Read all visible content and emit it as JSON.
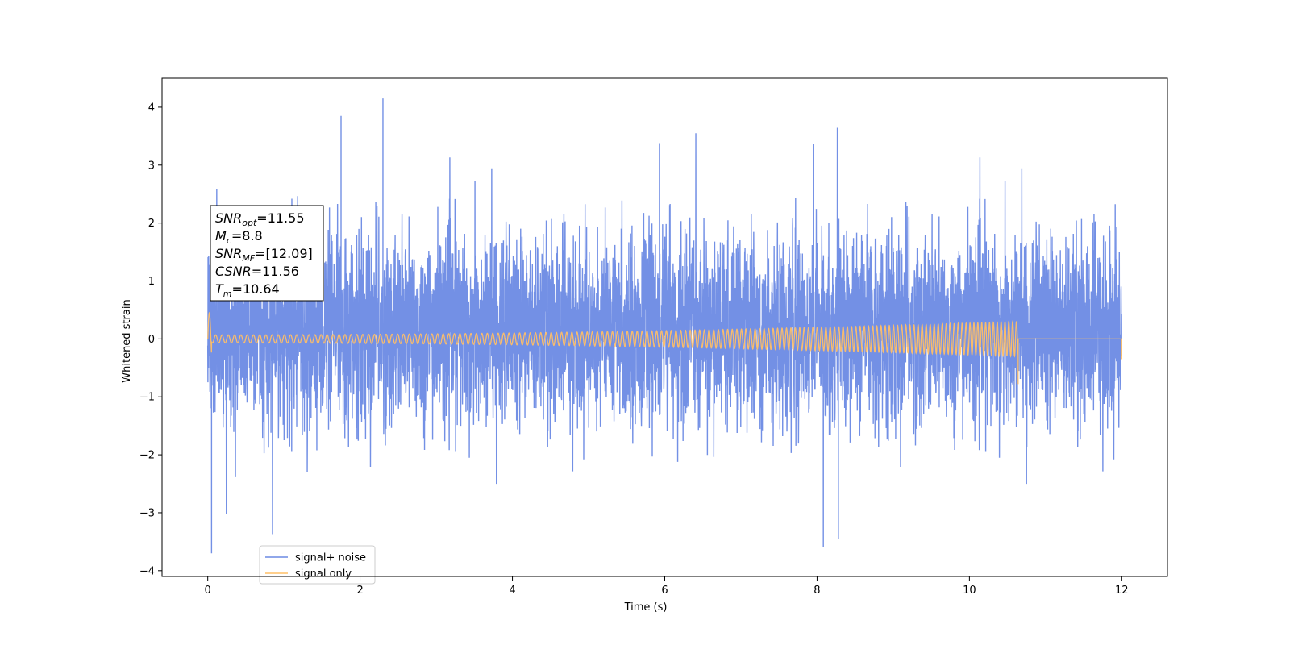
{
  "chart_data": {
    "type": "line",
    "title": "",
    "xlabel": "Time (s)",
    "ylabel": "Whitened strain",
    "xlim": [
      -0.6,
      12.6
    ],
    "ylim": [
      -4.1,
      4.5
    ],
    "xticks": [
      0,
      2,
      4,
      6,
      8,
      10,
      12
    ],
    "yticks": [
      -4,
      -3,
      -2,
      -1,
      0,
      1,
      2,
      3,
      4
    ],
    "xtick_labels": [
      "0",
      "2",
      "4",
      "6",
      "8",
      "10",
      "12"
    ],
    "ytick_labels": [
      "−4",
      "−3",
      "−2",
      "−1",
      "0",
      "1",
      "2",
      "3",
      "4"
    ],
    "grid": false,
    "legend_position": "lower-left",
    "series": [
      {
        "name": "signal+ noise",
        "color": "#6c8ae4",
        "description_of_values": "whitened strain, approx. zero-mean noise with std ~0.8 from 0 to 12 s, peaks to ~4.15 near 2.3 s and min ~-3.7 near 0.05 s",
        "x_range": [
          0,
          12
        ],
        "y_envelope_typical": [
          -1.9,
          2.3
        ],
        "y_max": 4.15,
        "y_min": -3.7
      },
      {
        "name": "signal only",
        "color": "#ffbf66",
        "description_of_values": "chirp oscillation starting amplitude ~0.07 growing to ~0.3 until merger at ~10.64 s, then zero until 12 s",
        "x_range": [
          0,
          12
        ],
        "merger_time": 10.64,
        "amplitude_start": 0.07,
        "amplitude_end": 0.3
      }
    ],
    "annotations": [
      {
        "base": "SNR",
        "sub": "opt",
        "value": "=11.55"
      },
      {
        "base": "M",
        "sub": "c",
        "value": "=8.8"
      },
      {
        "base": "SNR",
        "sub": "MF",
        "value": "=[12.09]"
      },
      {
        "base": "CSNR",
        "sub": "",
        "value": "=11.56"
      },
      {
        "base": "T",
        "sub": "m",
        "value": "=10.64"
      }
    ]
  }
}
